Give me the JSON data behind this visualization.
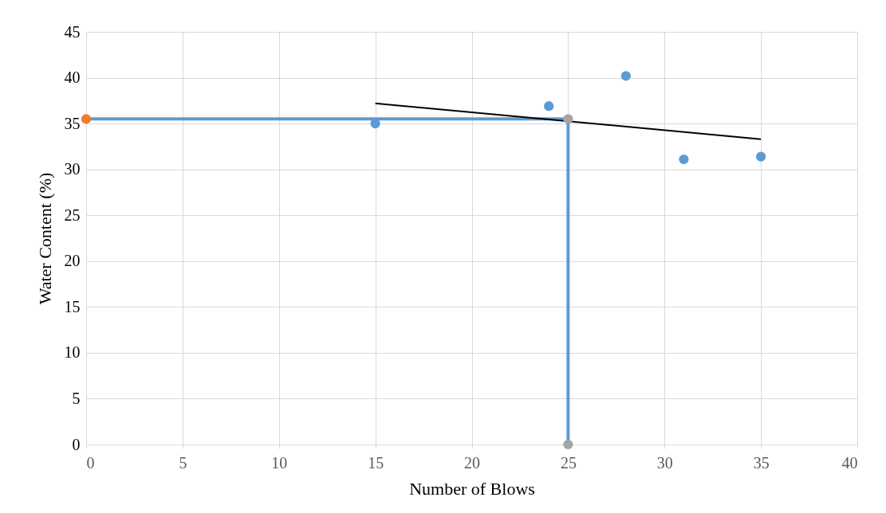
{
  "chart_data": {
    "type": "scatter",
    "xlabel": "Number of Blows",
    "ylabel": "Water Content (%)",
    "xlim": [
      0,
      40
    ],
    "xticks": [
      0,
      5,
      10,
      15,
      20,
      25,
      30,
      35,
      40
    ],
    "ylim": [
      0,
      45
    ],
    "yticks": [
      0,
      5,
      10,
      15,
      20,
      25,
      30,
      35,
      40,
      45
    ],
    "grid": true,
    "legend": false,
    "marker": "circle",
    "series": [
      {
        "type": "line",
        "color": "#5b9bd5",
        "x": [
          0,
          25,
          25
        ],
        "values": [
          35.5,
          35.5,
          0
        ],
        "marker": "none"
      },
      {
        "color": "#5b9bd5",
        "x": [
          15,
          24,
          28,
          31,
          35
        ],
        "values": [
          35.0,
          36.9,
          40.2,
          31.1,
          31.4
        ]
      },
      {
        "type": "line",
        "color": "#000000",
        "x": [
          15,
          35
        ],
        "values": [
          37.2,
          33.3
        ],
        "marker": "none"
      },
      {
        "type": "scatter",
        "color": "#ed7d31",
        "x": [
          0
        ],
        "values": [
          35.5
        ]
      },
      {
        "type": "scatter",
        "color": "#a5a5a5",
        "x": [
          25,
          25
        ],
        "values": [
          35.5,
          0
        ]
      }
    ]
  }
}
